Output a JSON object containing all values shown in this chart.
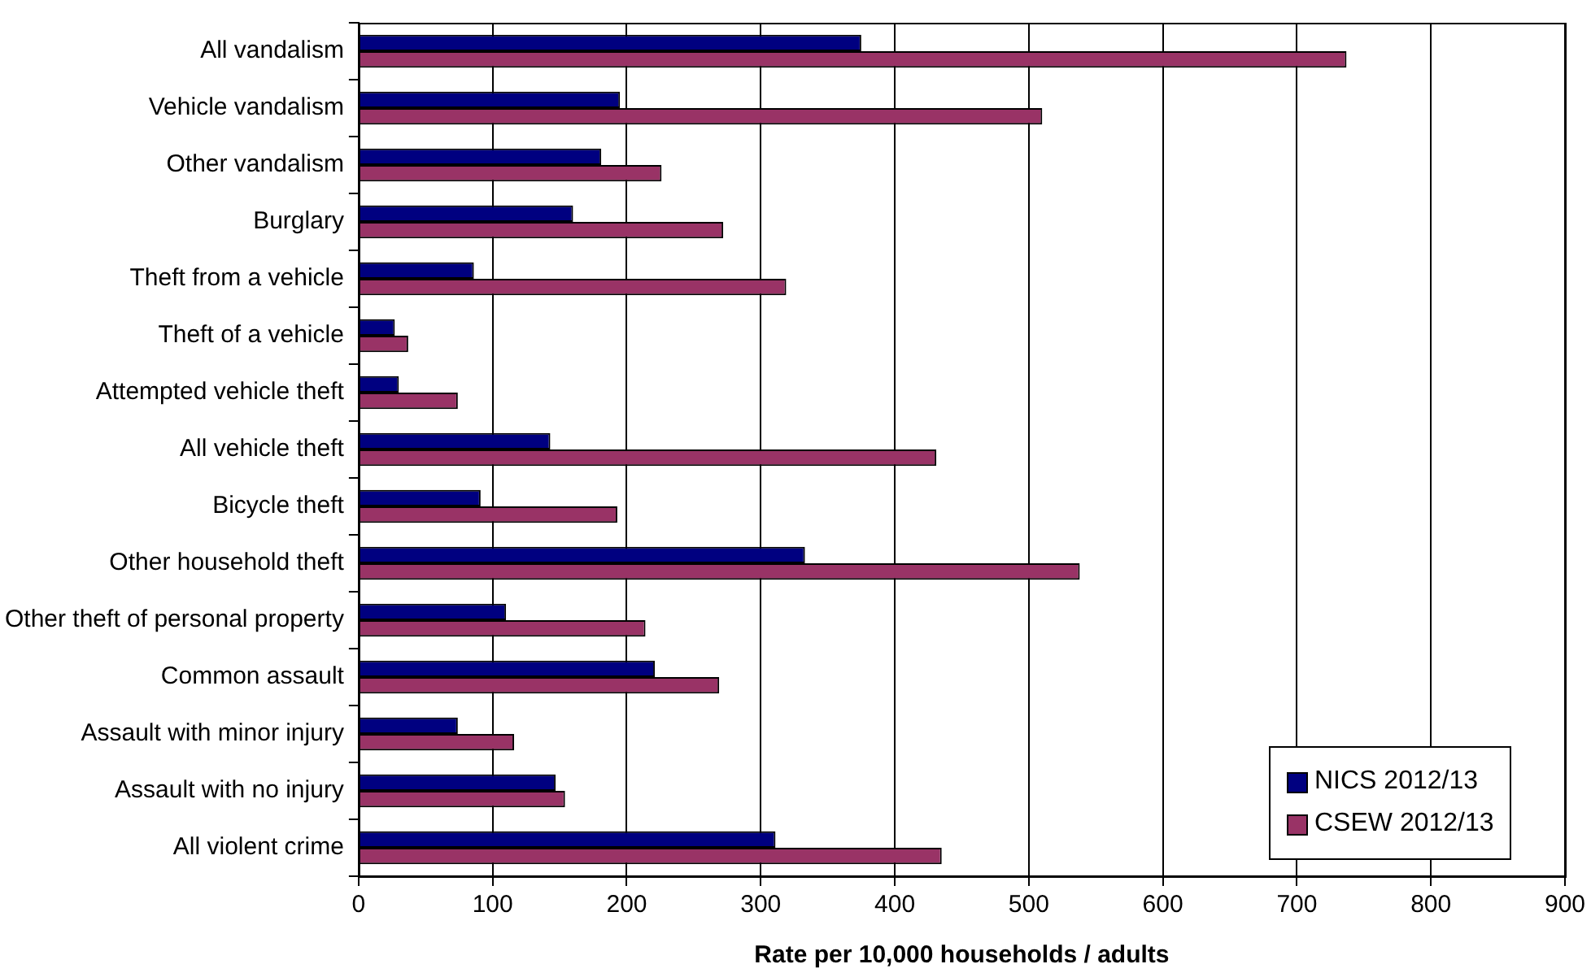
{
  "chart_data": {
    "type": "bar",
    "orientation": "horizontal",
    "xlabel": "Rate per 10,000 households / adults",
    "categories": [
      "All vandalism",
      "Vehicle vandalism",
      "Other vandalism",
      "Burglary",
      "Theft from a vehicle",
      "Theft of a vehicle",
      "Attempted vehicle theft",
      "All vehicle theft",
      "Bicycle theft",
      "Other household theft",
      "Other theft of personal property",
      "Common assault",
      "Assault with minor injury",
      "Assault with no injury",
      "All violent crime"
    ],
    "series": [
      {
        "name": "NICS 2012/13",
        "color": "#000080",
        "values": [
          375,
          195,
          181,
          160,
          86,
          27,
          30,
          143,
          91,
          333,
          110,
          221,
          74,
          147,
          311
        ]
      },
      {
        "name": "CSEW 2012/13",
        "color": "#993366",
        "values": [
          737,
          510,
          226,
          272,
          319,
          37,
          74,
          431,
          193,
          538,
          214,
          269,
          116,
          154,
          435
        ]
      }
    ],
    "xlim": [
      0,
      900
    ],
    "xticks": [
      0,
      100,
      200,
      300,
      400,
      500,
      600,
      700,
      800,
      900
    ],
    "grid": "x",
    "legend": "bottom right"
  }
}
